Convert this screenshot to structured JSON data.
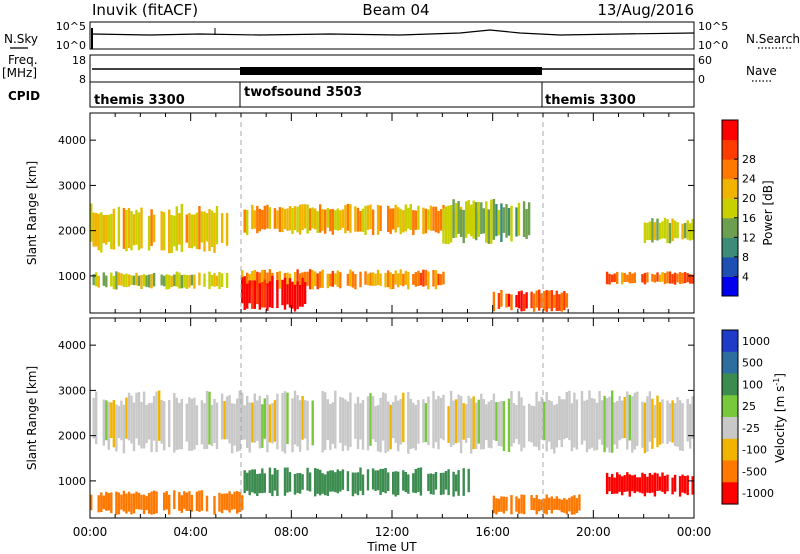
{
  "header": {
    "station": "Inuvik (fitACF)",
    "beam": "Beam 04",
    "date": "13/Aug/2016"
  },
  "nsky": {
    "label": "N.Sky",
    "left_ticks": [
      "10^5",
      "10^0"
    ],
    "right_ticks": [
      "10^5",
      "10^0"
    ],
    "right_label": "N.Search"
  },
  "freq": {
    "label_line1": "Freq.",
    "label_line2": "[MHz]",
    "left_ticks": [
      "18",
      "8"
    ],
    "right_ticks": [
      "60",
      "0"
    ],
    "right_label": "Nave"
  },
  "cpid": {
    "label": "CPID",
    "segments": [
      {
        "name": "themis 3300",
        "start_h": 0,
        "end_h": 6
      },
      {
        "name": "twofsound 3503",
        "start_h": 6,
        "end_h": 18
      },
      {
        "name": "themis 3300",
        "start_h": 18,
        "end_h": 24
      }
    ]
  },
  "colors": {
    "power_scale": [
      "#0000ee",
      "#1e50b4",
      "#3c8c78",
      "#6ca050",
      "#c8d000",
      "#f0b400",
      "#ff7800",
      "#ff3c00",
      "#ff0000"
    ],
    "velocity_scale": [
      "#1e3cc8",
      "#2d6ea0",
      "#3c8c50",
      "#78c83c",
      "#c8c8c8",
      "#f0b400",
      "#ff7800",
      "#ff0000"
    ]
  },
  "chart_data": [
    {
      "type": "heatmap",
      "name": "power",
      "ylabel": "Slant Range [km]",
      "ylim": [
        180,
        4600
      ],
      "yticks": [
        "1000",
        "2000",
        "3000",
        "4000"
      ],
      "ytick_values": [
        1000,
        2000,
        3000,
        4000
      ],
      "xlim": [
        0,
        24
      ],
      "colorbar": {
        "label": "Power [dB]",
        "range": [
          0,
          32
        ],
        "ticks": [
          "4",
          "8",
          "12",
          "16",
          "20",
          "24",
          "28"
        ]
      },
      "bands": [
        {
          "start_h": 0.0,
          "end_h": 5.5,
          "lo_km": 1500,
          "hi_km": 2600,
          "dB": 18
        },
        {
          "start_h": 0.0,
          "end_h": 5.5,
          "lo_km": 700,
          "hi_km": 1100,
          "dB": 16
        },
        {
          "start_h": 6.0,
          "end_h": 15.5,
          "lo_km": 1900,
          "hi_km": 2600,
          "dB": 20
        },
        {
          "start_h": 6.0,
          "end_h": 14.0,
          "lo_km": 700,
          "hi_km": 1150,
          "dB": 22
        },
        {
          "start_h": 6.0,
          "end_h": 8.5,
          "lo_km": 200,
          "hi_km": 1000,
          "dB": 30
        },
        {
          "start_h": 14.0,
          "end_h": 17.5,
          "lo_km": 1700,
          "hi_km": 2700,
          "dB": 14
        },
        {
          "start_h": 16.0,
          "end_h": 19.0,
          "lo_km": 200,
          "hi_km": 700,
          "dB": 26
        },
        {
          "start_h": 20.5,
          "end_h": 24.0,
          "lo_km": 800,
          "hi_km": 1100,
          "dB": 24
        },
        {
          "start_h": 22.0,
          "end_h": 24.0,
          "lo_km": 1700,
          "hi_km": 2300,
          "dB": 16
        }
      ]
    },
    {
      "type": "heatmap",
      "name": "velocity",
      "ylabel": "Slant Range [km]",
      "xlabel": "Time UT",
      "ylim": [
        180,
        4600
      ],
      "yticks": [
        "1000",
        "2000",
        "3000",
        "4000"
      ],
      "ytick_values": [
        1000,
        2000,
        3000,
        4000
      ],
      "xlim": [
        0,
        24
      ],
      "xticks": [
        "00:00",
        "04:00",
        "08:00",
        "12:00",
        "16:00",
        "20:00",
        "00:00"
      ],
      "xtick_values": [
        0,
        4,
        8,
        12,
        16,
        20,
        24
      ],
      "colorbar": {
        "label": "Velocity [m s",
        "label_sup": "-1",
        "ticks": [
          "1000",
          "500",
          "100",
          "25",
          "-25",
          "-100",
          "-500",
          "-1000"
        ]
      },
      "bands": [
        {
          "start_h": 0.0,
          "end_h": 24.0,
          "lo_km": 1600,
          "hi_km": 3000,
          "v": 0
        },
        {
          "start_h": 6.0,
          "end_h": 15.0,
          "lo_km": 650,
          "hi_km": 1300,
          "v": 150
        },
        {
          "start_h": 0.0,
          "end_h": 6.0,
          "lo_km": 250,
          "hi_km": 800,
          "v": -300
        },
        {
          "start_h": 16.0,
          "end_h": 19.5,
          "lo_km": 250,
          "hi_km": 700,
          "v": -200
        },
        {
          "start_h": 20.5,
          "end_h": 24.0,
          "lo_km": 650,
          "hi_km": 1200,
          "v": -600
        }
      ]
    }
  ]
}
